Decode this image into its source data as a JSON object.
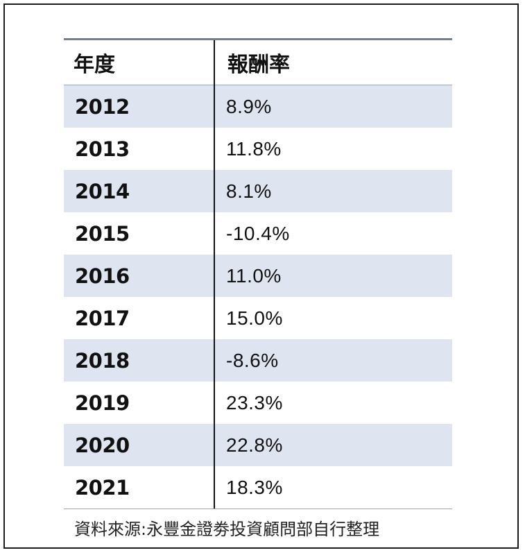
{
  "chart_data": {
    "type": "table",
    "columns": [
      "年度",
      "報酬率"
    ],
    "rows": [
      {
        "year": "2012",
        "return": "8.9%"
      },
      {
        "year": "2013",
        "return": "11.8%"
      },
      {
        "year": "2014",
        "return": "8.1%"
      },
      {
        "year": "2015",
        "return": "-10.4%"
      },
      {
        "year": "2016",
        "return": "11.0%"
      },
      {
        "year": "2017",
        "return": "15.0%"
      },
      {
        "year": "2018",
        "return": "-8.6%"
      },
      {
        "year": "2019",
        "return": "23.3%"
      },
      {
        "year": "2020",
        "return": "22.8%"
      },
      {
        "year": "2021",
        "return": "18.3%"
      }
    ],
    "values": [
      8.9,
      11.8,
      8.1,
      -10.4,
      11.0,
      15.0,
      -8.6,
      23.3,
      22.8,
      18.3
    ],
    "source": "資料來源:永豐金證劵投資顧問部自行整理"
  },
  "colors": {
    "header_rule": "#6f7f99",
    "row_shade": "#dfe5f0",
    "text": "#111111"
  }
}
